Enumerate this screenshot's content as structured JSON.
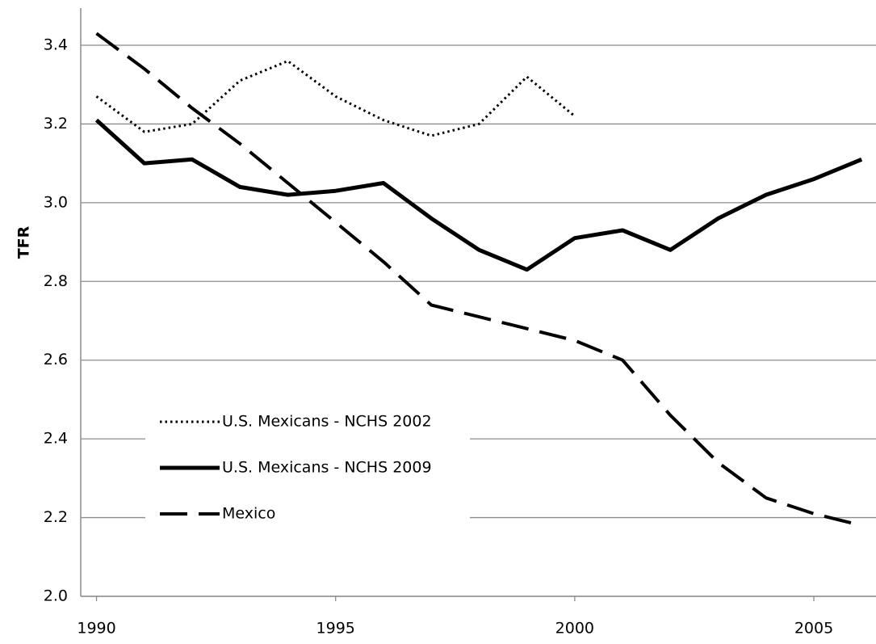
{
  "chart_data": {
    "type": "line",
    "y_label": "TFR",
    "x": [
      1990,
      1991,
      1992,
      1993,
      1994,
      1995,
      1996,
      1997,
      1998,
      1999,
      2000,
      2001,
      2002,
      2003,
      2004,
      2005,
      2006
    ],
    "series": [
      {
        "name": "U.S. Mexicans - NCHS 2002",
        "color": "#000000",
        "dash": "dotted",
        "values": [
          3.27,
          3.18,
          3.2,
          3.31,
          3.36,
          3.27,
          3.21,
          3.17,
          3.2,
          3.32,
          3.22,
          null,
          null,
          null,
          null,
          null,
          null
        ]
      },
      {
        "name": "U.S. Mexicans - NCHS 2009",
        "color": "#000000",
        "dash": "solid",
        "values": [
          3.21,
          3.1,
          3.11,
          3.04,
          3.02,
          3.03,
          3.05,
          2.96,
          2.88,
          2.83,
          2.91,
          2.93,
          2.88,
          2.96,
          3.02,
          3.06,
          3.11
        ]
      },
      {
        "name": "Mexico",
        "color": "#000000",
        "dash": "dashed",
        "values": [
          3.43,
          3.34,
          3.24,
          3.15,
          3.05,
          2.95,
          2.85,
          2.74,
          2.71,
          2.68,
          2.65,
          2.6,
          2.46,
          2.34,
          2.25,
          2.21,
          2.18
        ]
      }
    ],
    "xlim": [
      1989.67,
      2006.3
    ],
    "xticks": [
      1990,
      1995,
      2000,
      2005
    ],
    "ylim": [
      2.0,
      3.4
    ],
    "yticks": [
      {
        "value": 2.0,
        "label": "2.0"
      },
      2.2,
      2.4,
      2.6,
      2.8,
      {
        "value": 3.0,
        "label": "3.0"
      },
      3.2,
      3.4
    ],
    "grid": true,
    "legend": "lower-left"
  }
}
